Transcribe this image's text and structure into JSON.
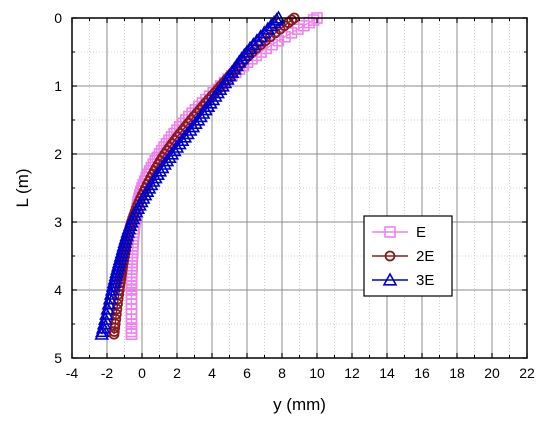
{
  "chart_data": {
    "type": "line",
    "xlabel": "y (mm)",
    "ylabel": "L (m)",
    "xlim": [
      -4,
      22
    ],
    "ylim": [
      0,
      5
    ],
    "y_inverted": true,
    "x_axis_position": "top-and-bottom",
    "xticks": [
      -4,
      -2,
      0,
      2,
      4,
      6,
      8,
      10,
      12,
      14,
      16,
      18,
      20,
      22
    ],
    "yticks": [
      0,
      1,
      2,
      3,
      4,
      5
    ],
    "xtick_labels": [
      "-4",
      "-2",
      "0",
      "2",
      "4",
      "6",
      "8",
      "10",
      "12",
      "14",
      "16",
      "18",
      "20",
      "22"
    ],
    "ytick_labels": [
      "0",
      "1",
      "2",
      "3",
      "4",
      "5"
    ],
    "grid": true,
    "legend_position": "right-middle",
    "series": [
      {
        "name": "E",
        "marker": "square",
        "color": "#ee82ee",
        "points": [
          {
            "x": 10.0,
            "y": 0.0
          },
          {
            "x": 6.8,
            "y": 0.5
          },
          {
            "x": 4.5,
            "y": 1.0
          },
          {
            "x": 2.5,
            "y": 1.5
          },
          {
            "x": 1.0,
            "y": 2.0
          },
          {
            "x": 0.0,
            "y": 2.5
          },
          {
            "x": -0.4,
            "y": 3.0
          },
          {
            "x": -0.55,
            "y": 3.5
          },
          {
            "x": -0.6,
            "y": 4.0
          },
          {
            "x": -0.6,
            "y": 4.65
          }
        ]
      },
      {
        "name": "2E",
        "marker": "circle",
        "color": "#8b1a1a",
        "points": [
          {
            "x": 8.7,
            "y": 0.0
          },
          {
            "x": 6.3,
            "y": 0.5
          },
          {
            "x": 4.5,
            "y": 1.0
          },
          {
            "x": 2.8,
            "y": 1.5
          },
          {
            "x": 1.3,
            "y": 2.0
          },
          {
            "x": 0.2,
            "y": 2.5
          },
          {
            "x": -0.6,
            "y": 3.0
          },
          {
            "x": -1.0,
            "y": 3.5
          },
          {
            "x": -1.3,
            "y": 4.0
          },
          {
            "x": -1.6,
            "y": 4.65
          }
        ]
      },
      {
        "name": "3E",
        "marker": "triangle",
        "color": "#0000cd",
        "points": [
          {
            "x": 7.8,
            "y": 0.0
          },
          {
            "x": 6.0,
            "y": 0.5
          },
          {
            "x": 4.6,
            "y": 1.0
          },
          {
            "x": 3.2,
            "y": 1.5
          },
          {
            "x": 1.7,
            "y": 2.0
          },
          {
            "x": 0.4,
            "y": 2.5
          },
          {
            "x": -0.6,
            "y": 3.0
          },
          {
            "x": -1.2,
            "y": 3.5
          },
          {
            "x": -1.7,
            "y": 4.0
          },
          {
            "x": -2.3,
            "y": 4.65
          }
        ]
      }
    ]
  }
}
